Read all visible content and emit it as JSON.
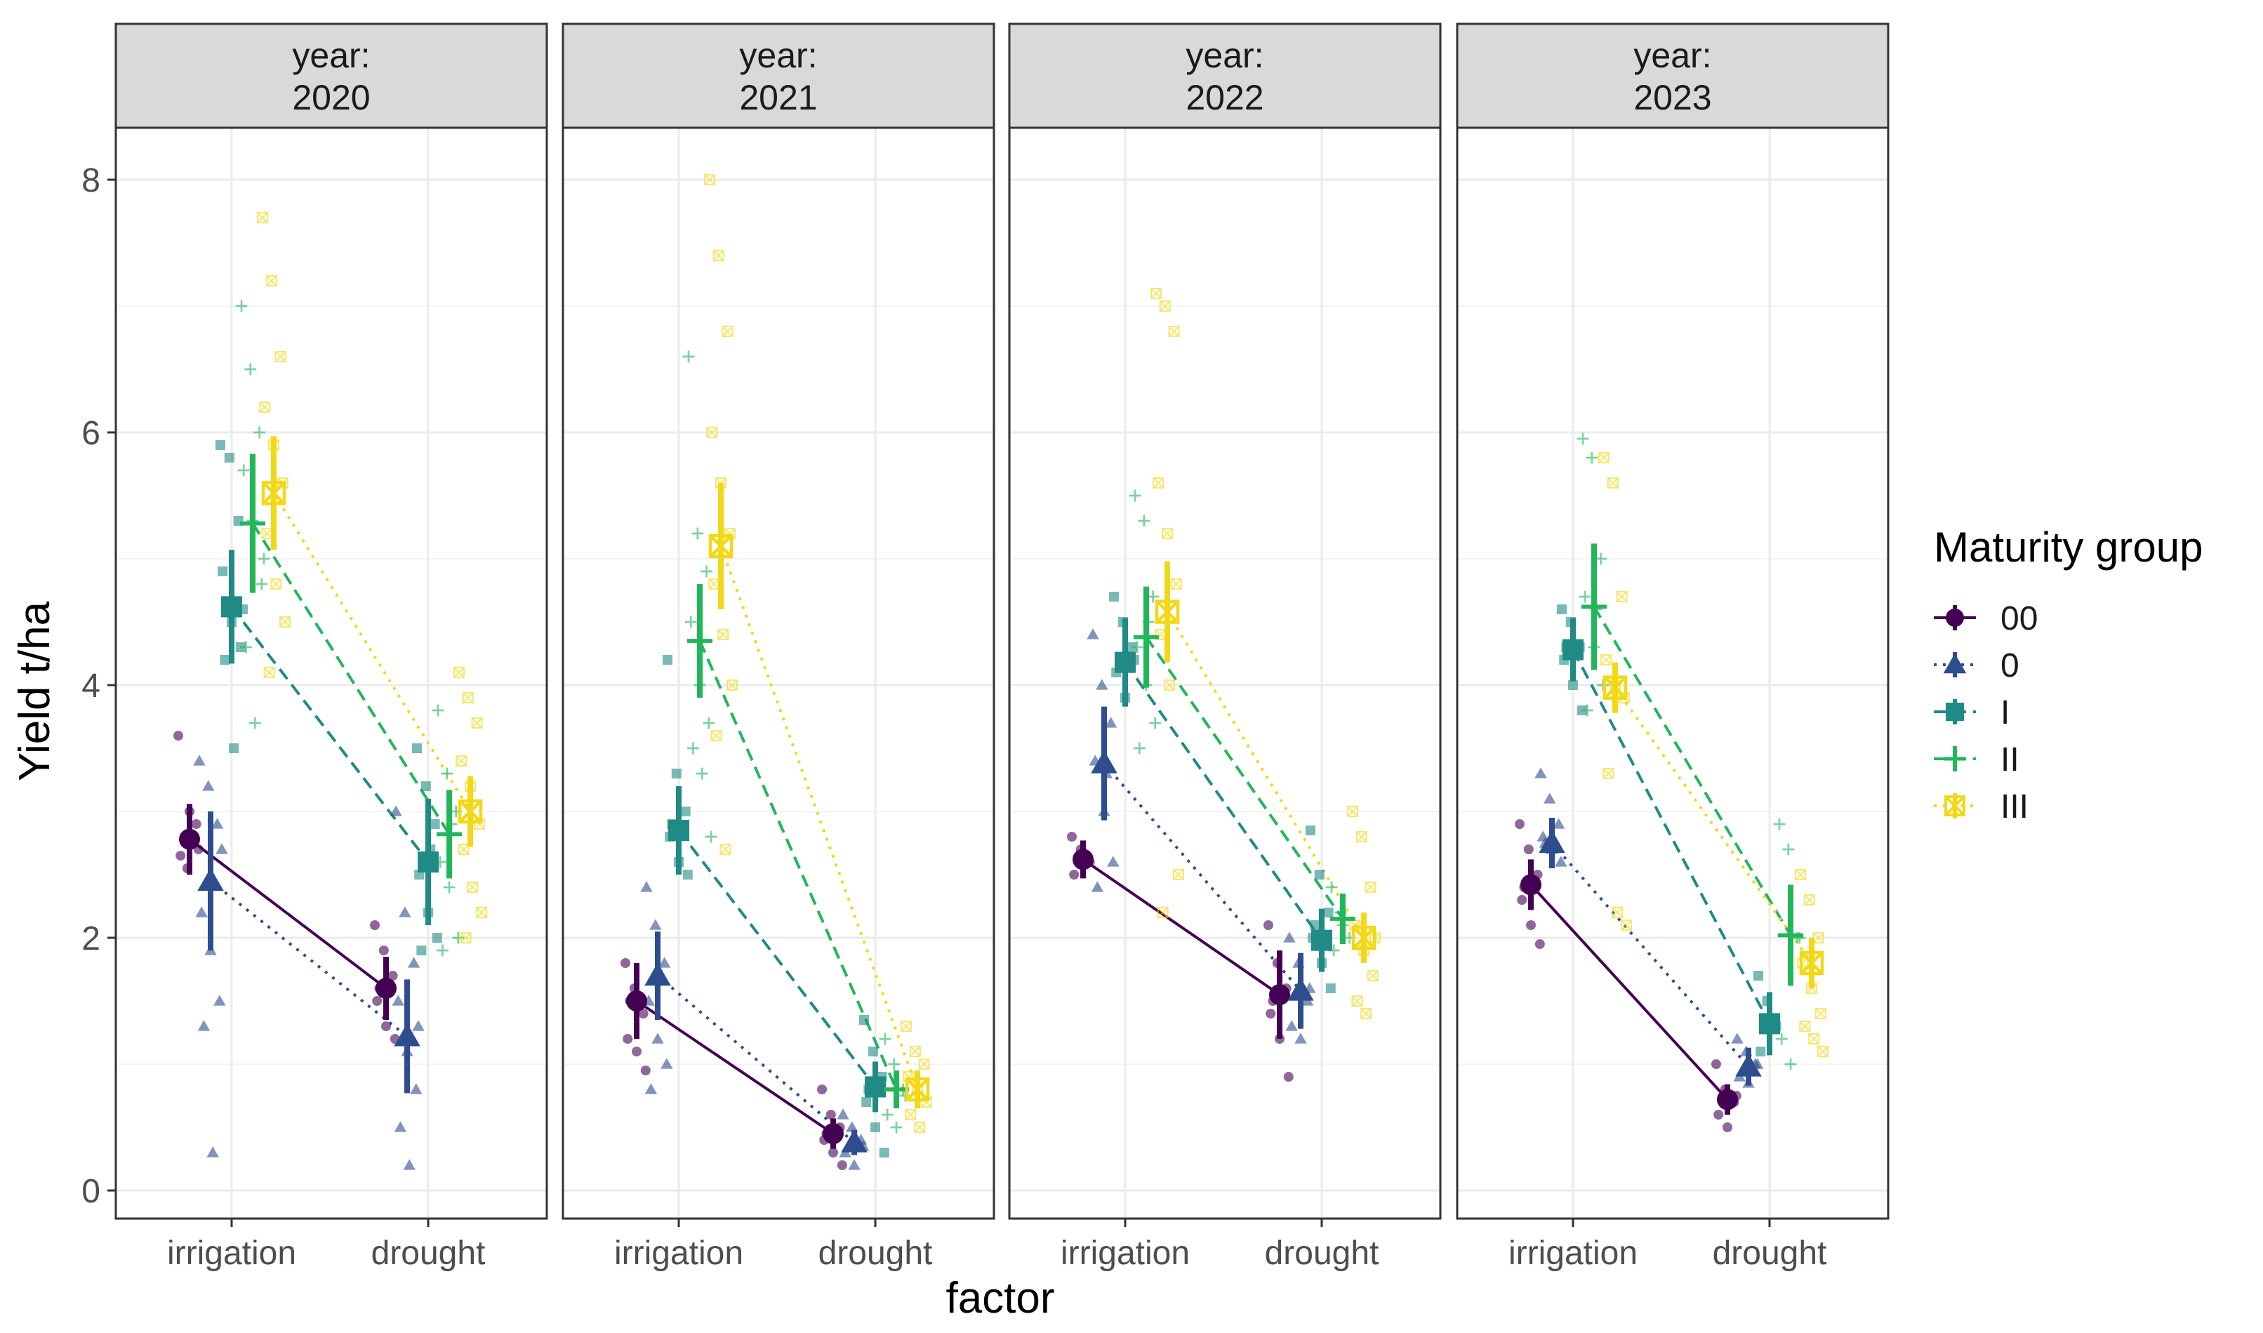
{
  "chart_data": {
    "type": "scatter",
    "xlabel": "factor",
    "ylabel": "Yield t/ha",
    "ylim": [
      0,
      8.3
    ],
    "yticks": [
      "0",
      "2",
      "4",
      "6",
      "8"
    ],
    "categories": [
      "irrigation",
      "drought"
    ],
    "facet_prefix": "year:",
    "legend": {
      "title": "Maturity group",
      "position": "right"
    },
    "series": [
      {
        "name": "00",
        "color": "#440154",
        "shape": "circle",
        "line": "solid"
      },
      {
        "name": "0",
        "color": "#2e4d8f",
        "shape": "triangle",
        "line": "dotted"
      },
      {
        "name": "I",
        "color": "#1f8a86",
        "shape": "square",
        "line": "dashed"
      },
      {
        "name": "II",
        "color": "#22b65a",
        "shape": "plus",
        "line": "dashed"
      },
      {
        "name": "III",
        "color": "#f2d816",
        "shape": "squarecross",
        "line": "dotted"
      }
    ],
    "facets": [
      {
        "year": "2020",
        "means": {
          "irrigation": [
            2.78,
            2.45,
            4.62,
            5.28,
            5.52
          ],
          "drought": [
            1.6,
            1.22,
            2.6,
            2.82,
            3.0
          ]
        },
        "errors": {
          "irrigation": [
            0.28,
            0.55,
            0.45,
            0.55,
            0.45
          ],
          "drought": [
            0.25,
            0.45,
            0.5,
            0.35,
            0.28
          ]
        },
        "points": {
          "irrigation": [
            [
              3.6,
              2.55,
              2.9,
              2.65,
              3.0,
              2.7
            ],
            [
              3.4,
              3.2,
              2.9,
              2.2,
              1.9,
              1.5,
              1.3,
              0.3,
              2.7
            ],
            [
              5.9,
              5.8,
              5.3,
              4.9,
              4.5,
              4.3,
              4.2,
              3.5,
              4.6
            ],
            [
              7.0,
              6.5,
              6.0,
              5.7,
              5.3,
              4.8,
              4.3,
              3.7,
              5.0
            ],
            [
              7.7,
              7.2,
              6.6,
              6.2,
              5.9,
              5.6,
              5.2,
              4.8,
              4.5,
              4.1
            ]
          ],
          "drought": [
            [
              2.1,
              1.9,
              1.7,
              1.5,
              1.3,
              1.2,
              1.6
            ],
            [
              3.0,
              2.2,
              1.8,
              1.5,
              1.1,
              0.8,
              0.5,
              0.2,
              1.3
            ],
            [
              3.5,
              3.2,
              2.9,
              2.5,
              2.2,
              2.0,
              1.9,
              2.7
            ],
            [
              3.8,
              3.3,
              3.0,
              2.6,
              2.4,
              2.0,
              1.9,
              2.9
            ],
            [
              4.1,
              3.9,
              3.7,
              3.4,
              3.2,
              2.9,
              2.7,
              2.4,
              2.2,
              2.0
            ]
          ]
        }
      },
      {
        "year": "2021",
        "means": {
          "irrigation": [
            1.5,
            1.7,
            2.85,
            4.35,
            5.1
          ],
          "drought": [
            0.45,
            0.38,
            0.82,
            0.8,
            0.8
          ]
        },
        "errors": {
          "irrigation": [
            0.3,
            0.35,
            0.35,
            0.45,
            0.5
          ],
          "drought": [
            0.12,
            0.1,
            0.2,
            0.15,
            0.15
          ]
        },
        "points": {
          "irrigation": [
            [
              1.8,
              1.6,
              1.4,
              1.2,
              1.1,
              0.95,
              1.5
            ],
            [
              2.4,
              2.1,
              1.8,
              1.5,
              1.2,
              1.0,
              0.8,
              1.7
            ],
            [
              4.2,
              3.3,
              3.0,
              2.8,
              2.6,
              2.5,
              2.9
            ],
            [
              6.6,
              5.2,
              4.9,
              4.5,
              4.0,
              3.7,
              3.5,
              3.3,
              2.8
            ],
            [
              8.0,
              7.4,
              6.8,
              6.0,
              5.6,
              5.2,
              4.8,
              4.4,
              4.0,
              3.6,
              2.7
            ]
          ],
          "drought": [
            [
              0.8,
              0.6,
              0.5,
              0.4,
              0.3,
              0.2,
              0.45
            ],
            [
              0.6,
              0.5,
              0.4,
              0.3,
              0.2,
              0.35
            ],
            [
              1.35,
              1.1,
              0.9,
              0.7,
              0.5,
              0.3,
              0.8
            ],
            [
              1.2,
              1.0,
              0.8,
              0.6,
              0.5,
              0.75
            ],
            [
              1.3,
              1.1,
              1.0,
              0.9,
              0.8,
              0.7,
              0.6,
              0.5
            ]
          ]
        }
      },
      {
        "year": "2022",
        "means": {
          "irrigation": [
            2.62,
            3.38,
            4.18,
            4.38,
            4.58
          ],
          "drought": [
            1.55,
            1.58,
            1.98,
            2.15,
            2.0
          ]
        },
        "errors": {
          "irrigation": [
            0.15,
            0.45,
            0.35,
            0.4,
            0.4
          ],
          "drought": [
            0.35,
            0.3,
            0.25,
            0.2,
            0.2
          ]
        },
        "points": {
          "irrigation": [
            [
              2.8,
              2.7,
              2.6,
              2.5,
              2.65
            ],
            [
              4.4,
              4.0,
              3.7,
              3.4,
              3.0,
              2.6,
              2.4,
              3.3
            ],
            [
              4.7,
              4.5,
              4.3,
              4.1,
              3.9,
              4.2
            ],
            [
              5.5,
              5.3,
              4.7,
              4.3,
              4.0,
              3.7,
              3.5,
              4.5
            ],
            [
              7.1,
              7.0,
              6.8,
              5.6,
              5.2,
              4.8,
              4.4,
              4.0,
              2.5,
              2.2
            ]
          ],
          "drought": [
            [
              2.1,
              1.8,
              1.6,
              1.4,
              1.2,
              0.9,
              1.5
            ],
            [
              2.0,
              1.8,
              1.5,
              1.3,
              1.2,
              1.6
            ],
            [
              2.85,
              2.5,
              2.2,
              2.0,
              1.8,
              1.6,
              2.1
            ],
            [
              2.4,
              2.2,
              2.0,
              1.9,
              2.1
            ],
            [
              3.0,
              2.8,
              2.4,
              2.1,
              1.9,
              1.7,
              1.5,
              1.4,
              2.0
            ]
          ]
        }
      },
      {
        "year": "2023",
        "means": {
          "irrigation": [
            2.42,
            2.75,
            4.28,
            4.62,
            3.98
          ],
          "drought": [
            0.72,
            0.98,
            1.32,
            2.02,
            1.8
          ]
        },
        "errors": {
          "irrigation": [
            0.2,
            0.2,
            0.25,
            0.5,
            0.2
          ],
          "drought": [
            0.12,
            0.15,
            0.25,
            0.4,
            0.2
          ]
        },
        "points": {
          "irrigation": [
            [
              2.9,
              2.7,
              2.5,
              2.3,
              2.1,
              1.95,
              2.4
            ],
            [
              3.3,
              3.1,
              2.9,
              2.8,
              2.7,
              2.6,
              2.75
            ],
            [
              4.6,
              4.5,
              4.3,
              4.2,
              4.0,
              3.8,
              4.3
            ],
            [
              5.95,
              5.8,
              5.0,
              4.7,
              4.3,
              4.0,
              3.8,
              4.6
            ],
            [
              5.8,
              5.6,
              4.7,
              4.2,
              4.0,
              3.9,
              3.3,
              2.2,
              2.1
            ]
          ],
          "drought": [
            [
              1.0,
              0.8,
              0.7,
              0.6,
              0.5,
              0.75
            ],
            [
              1.2,
              1.1,
              1.0,
              0.9,
              0.85,
              1.0
            ],
            [
              1.7,
              1.5,
              1.3,
              1.1,
              1.3
            ],
            [
              2.9,
              2.7,
              2.0,
              1.2,
              1.0,
              2.0
            ],
            [
              2.5,
              2.3,
              2.0,
              1.8,
              1.6,
              1.4,
              1.3,
              1.2,
              1.1
            ]
          ]
        }
      }
    ]
  }
}
